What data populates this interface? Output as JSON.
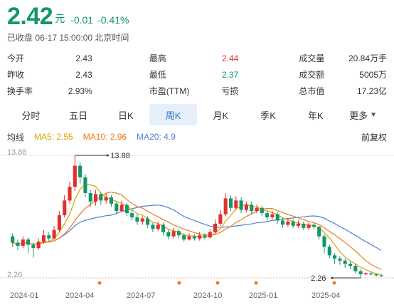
{
  "quote": {
    "price": "2.42",
    "unit": "元",
    "change": "-0.01",
    "change_pct": "-0.41%",
    "status": "已收盘 06-17 15:00:00 北京时间",
    "colors": {
      "down": "#14966a",
      "up": "#e0302e"
    }
  },
  "stats": [
    [
      {
        "label": "今开",
        "value": "2.43",
        "tone": ""
      },
      {
        "label": "最高",
        "value": "2.44",
        "tone": "red"
      },
      {
        "label": "成交量",
        "value": "20.84万手",
        "tone": ""
      }
    ],
    [
      {
        "label": "昨收",
        "value": "2.43",
        "tone": ""
      },
      {
        "label": "最低",
        "value": "2.37",
        "tone": "green"
      },
      {
        "label": "成交额",
        "value": "5005万",
        "tone": ""
      }
    ],
    [
      {
        "label": "换手率",
        "value": "2.93%",
        "tone": ""
      },
      {
        "label": "市盈(TTM)",
        "value": "亏损",
        "tone": ""
      },
      {
        "label": "总市值",
        "value": "17.23亿",
        "tone": ""
      }
    ]
  ],
  "tabs": [
    {
      "label": "分时",
      "active": false
    },
    {
      "label": "五日",
      "active": false
    },
    {
      "label": "日K",
      "active": false
    },
    {
      "label": "周K",
      "active": true
    },
    {
      "label": "月K",
      "active": false
    },
    {
      "label": "季K",
      "active": false
    },
    {
      "label": "年K",
      "active": false
    },
    {
      "label": "更多",
      "active": false,
      "caret": "chevron-down-icon"
    }
  ],
  "ma": {
    "label": "均线",
    "ma5": "MA5: 2.55",
    "ma10": "MA10: 2.96",
    "ma20": "MA20: 4.9",
    "adjust": "前复权",
    "colors": {
      "ma5": "#e0a000",
      "ma10": "#f07a1a",
      "ma20": "#4d7fd9"
    }
  },
  "chart_data": {
    "type": "candlestick",
    "y_axis_labels": [
      "13.88",
      "2.26"
    ],
    "max_marker": "13.88",
    "min_marker": "2.26",
    "x_labels": [
      "2024-01",
      "2024-04",
      "2024-07",
      "2024-10",
      "2025-01",
      "2025-04"
    ],
    "ylim": [
      2.26,
      13.88
    ],
    "event_dot_color": "#f07a1a",
    "event_dot_count": 5,
    "candles": [
      {
        "o": 6.2,
        "c": 5.6,
        "h": 6.5,
        "l": 5.2
      },
      {
        "o": 5.6,
        "c": 5.3,
        "h": 5.9,
        "l": 4.9
      },
      {
        "o": 5.3,
        "c": 5.9,
        "h": 6.2,
        "l": 5.1
      },
      {
        "o": 5.9,
        "c": 5.4,
        "h": 6.1,
        "l": 4.6
      },
      {
        "o": 5.4,
        "c": 5.1,
        "h": 5.6,
        "l": 4.2
      },
      {
        "o": 5.1,
        "c": 5.7,
        "h": 6.0,
        "l": 4.9
      },
      {
        "o": 5.7,
        "c": 6.3,
        "h": 6.8,
        "l": 5.5
      },
      {
        "o": 6.3,
        "c": 6.0,
        "h": 6.6,
        "l": 5.7
      },
      {
        "o": 6.0,
        "c": 6.8,
        "h": 7.2,
        "l": 5.9
      },
      {
        "o": 6.8,
        "c": 8.2,
        "h": 8.6,
        "l": 6.6
      },
      {
        "o": 8.2,
        "c": 9.6,
        "h": 10.1,
        "l": 8.0
      },
      {
        "o": 9.6,
        "c": 10.9,
        "h": 11.4,
        "l": 9.3
      },
      {
        "o": 10.9,
        "c": 12.9,
        "h": 13.88,
        "l": 10.5
      },
      {
        "o": 12.9,
        "c": 11.8,
        "h": 13.2,
        "l": 11.2
      },
      {
        "o": 11.8,
        "c": 10.3,
        "h": 12.1,
        "l": 9.9
      },
      {
        "o": 10.3,
        "c": 9.5,
        "h": 10.6,
        "l": 9.0
      },
      {
        "o": 9.5,
        "c": 10.2,
        "h": 10.6,
        "l": 9.1
      },
      {
        "o": 10.2,
        "c": 9.6,
        "h": 10.4,
        "l": 9.2
      },
      {
        "o": 9.6,
        "c": 9.9,
        "h": 10.3,
        "l": 9.3
      },
      {
        "o": 9.9,
        "c": 9.3,
        "h": 10.1,
        "l": 9.0
      },
      {
        "o": 9.3,
        "c": 8.6,
        "h": 9.5,
        "l": 8.3
      },
      {
        "o": 8.6,
        "c": 9.2,
        "h": 9.6,
        "l": 8.5
      },
      {
        "o": 9.2,
        "c": 8.4,
        "h": 9.4,
        "l": 8.1
      },
      {
        "o": 8.4,
        "c": 8.0,
        "h": 8.7,
        "l": 7.7
      },
      {
        "o": 8.0,
        "c": 7.6,
        "h": 8.3,
        "l": 7.3
      },
      {
        "o": 7.6,
        "c": 7.9,
        "h": 8.1,
        "l": 7.3
      },
      {
        "o": 7.9,
        "c": 7.3,
        "h": 8.1,
        "l": 7.0
      },
      {
        "o": 7.3,
        "c": 6.9,
        "h": 7.5,
        "l": 6.6
      },
      {
        "o": 6.9,
        "c": 7.3,
        "h": 7.6,
        "l": 6.7
      },
      {
        "o": 7.3,
        "c": 6.6,
        "h": 7.5,
        "l": 6.3
      },
      {
        "o": 6.6,
        "c": 6.2,
        "h": 6.9,
        "l": 5.9
      },
      {
        "o": 6.2,
        "c": 6.7,
        "h": 7.0,
        "l": 6.0
      },
      {
        "o": 6.7,
        "c": 6.3,
        "h": 6.9,
        "l": 6.0
      },
      {
        "o": 6.3,
        "c": 5.9,
        "h": 6.5,
        "l": 5.7
      },
      {
        "o": 5.9,
        "c": 6.2,
        "h": 6.5,
        "l": 5.8
      },
      {
        "o": 6.2,
        "c": 6.0,
        "h": 6.4,
        "l": 5.8
      },
      {
        "o": 6.0,
        "c": 6.3,
        "h": 6.6,
        "l": 5.8
      },
      {
        "o": 6.3,
        "c": 6.1,
        "h": 6.5,
        "l": 5.9
      },
      {
        "o": 6.1,
        "c": 6.6,
        "h": 6.9,
        "l": 6.0
      },
      {
        "o": 6.6,
        "c": 7.4,
        "h": 7.8,
        "l": 6.5
      },
      {
        "o": 7.4,
        "c": 8.3,
        "h": 8.7,
        "l": 7.2
      },
      {
        "o": 8.3,
        "c": 9.8,
        "h": 10.3,
        "l": 8.1
      },
      {
        "o": 9.8,
        "c": 8.9,
        "h": 10.1,
        "l": 8.6
      },
      {
        "o": 8.9,
        "c": 9.6,
        "h": 10.0,
        "l": 8.7
      },
      {
        "o": 9.6,
        "c": 8.7,
        "h": 9.9,
        "l": 8.4
      },
      {
        "o": 8.7,
        "c": 9.2,
        "h": 9.5,
        "l": 8.5
      },
      {
        "o": 9.2,
        "c": 8.6,
        "h": 9.5,
        "l": 8.3
      },
      {
        "o": 8.6,
        "c": 8.9,
        "h": 9.2,
        "l": 8.4
      },
      {
        "o": 8.9,
        "c": 8.4,
        "h": 9.1,
        "l": 8.1
      },
      {
        "o": 8.4,
        "c": 8.0,
        "h": 8.7,
        "l": 7.7
      },
      {
        "o": 8.0,
        "c": 8.3,
        "h": 8.6,
        "l": 7.8
      },
      {
        "o": 8.3,
        "c": 7.7,
        "h": 8.5,
        "l": 7.4
      },
      {
        "o": 7.7,
        "c": 7.3,
        "h": 8.0,
        "l": 7.0
      },
      {
        "o": 7.3,
        "c": 7.6,
        "h": 7.9,
        "l": 7.1
      },
      {
        "o": 7.6,
        "c": 7.2,
        "h": 7.8,
        "l": 7.0
      },
      {
        "o": 7.2,
        "c": 7.4,
        "h": 7.7,
        "l": 7.0
      },
      {
        "o": 7.4,
        "c": 7.0,
        "h": 7.6,
        "l": 6.8
      },
      {
        "o": 7.0,
        "c": 7.3,
        "h": 7.5,
        "l": 6.8
      },
      {
        "o": 7.3,
        "c": 7.1,
        "h": 7.5,
        "l": 6.9
      },
      {
        "o": 7.1,
        "c": 6.2,
        "h": 7.2,
        "l": 5.9
      },
      {
        "o": 6.2,
        "c": 5.2,
        "h": 6.4,
        "l": 4.6
      },
      {
        "o": 5.2,
        "c": 4.4,
        "h": 5.4,
        "l": 4.1
      },
      {
        "o": 4.4,
        "c": 4.1,
        "h": 4.6,
        "l": 3.6
      },
      {
        "o": 4.1,
        "c": 3.9,
        "h": 4.3,
        "l": 3.5
      },
      {
        "o": 3.9,
        "c": 3.6,
        "h": 4.1,
        "l": 3.2
      },
      {
        "o": 3.6,
        "c": 3.4,
        "h": 3.8,
        "l": 3.1
      },
      {
        "o": 3.4,
        "c": 2.9,
        "h": 3.6,
        "l": 2.7
      },
      {
        "o": 2.9,
        "c": 2.6,
        "h": 3.1,
        "l": 2.26
      },
      {
        "o": 2.6,
        "c": 2.7,
        "h": 2.8,
        "l": 2.5
      },
      {
        "o": 2.7,
        "c": 2.6,
        "h": 2.8,
        "l": 2.5
      },
      {
        "o": 2.6,
        "c": 2.5,
        "h": 2.7,
        "l": 2.4
      },
      {
        "o": 2.5,
        "c": 2.42,
        "h": 2.6,
        "l": 2.37
      }
    ]
  }
}
